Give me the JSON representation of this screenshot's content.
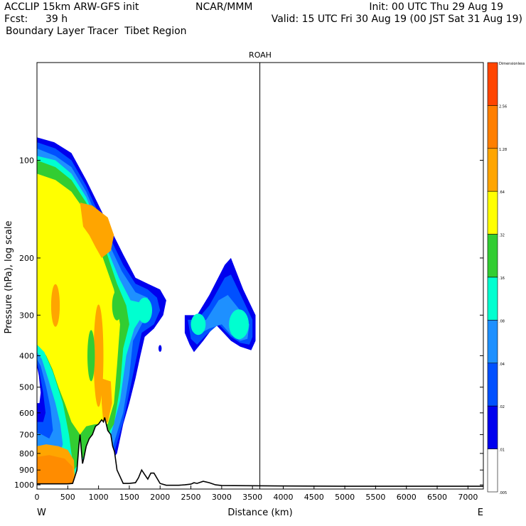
{
  "header": {
    "model": "ACCLIP 15km ARW-GFS init",
    "org": "NCAR/MMM",
    "init": "Init: 00 UTC Thu 29 Aug 19",
    "fcst_label": "Fcst:",
    "fcst_value": "39 h",
    "valid": "Valid: 15 UTC Fri 30 Aug 19 (00 JST Sat 31 Aug 19)",
    "field": "Boundary Layer Tracer  Tibet Region"
  },
  "chart_data": {
    "type": "area",
    "title": "ROAH",
    "xlabel": "Distance (km)",
    "ylabel": "Pressure (hPa), log scale",
    "x_end_labels": [
      "W",
      "E"
    ],
    "xlim": [
      0,
      7250
    ],
    "ylim_hpa": [
      1030,
      50
    ],
    "y_log_scale": true,
    "x_ticks": [
      0,
      500,
      1000,
      1500,
      2000,
      2500,
      3000,
      3500,
      4000,
      4500,
      5000,
      5500,
      6000,
      6500,
      7000
    ],
    "y_ticks": [
      100,
      200,
      300,
      400,
      500,
      600,
      700,
      800,
      900,
      1000
    ],
    "marker_line_km": 3620,
    "colorbar": {
      "labels": [
        "Dimensionless",
        "2.56",
        "1.28",
        ".64",
        ".32",
        ".16",
        ".08",
        ".04",
        ".02",
        ".01",
        ".005"
      ],
      "colors": [
        "#ff4500",
        "#ff7f00",
        "#ffa500",
        "#ffff00",
        "#32cd32",
        "#00ffd0",
        "#1e90ff",
        "#0050ff",
        "#0000ee",
        "#ffffff"
      ],
      "level_values": [
        5.12,
        2.56,
        1.28,
        0.64,
        0.32,
        0.16,
        0.08,
        0.04,
        0.02,
        0.01,
        0.005
      ]
    },
    "terrain": {
      "x_km": [
        0,
        200,
        400,
        500,
        580,
        650,
        680,
        700,
        720,
        740,
        760,
        800,
        850,
        900,
        950,
        1000,
        1050,
        1080,
        1100,
        1150,
        1200,
        1230,
        1260,
        1300,
        1400,
        1500,
        1600,
        1650,
        1700,
        1750,
        1800,
        1850,
        1900,
        2000,
        2100,
        2300,
        2400,
        2500,
        2550,
        2600,
        2700,
        2800,
        2900,
        3000,
        4000,
        5000,
        6000,
        7000,
        7250
      ],
      "p_hpa": [
        993,
        993,
        993,
        993,
        990,
        900,
        760,
        700,
        780,
        860,
        830,
        760,
        720,
        700,
        660,
        650,
        630,
        640,
        620,
        680,
        700,
        760,
        790,
        900,
        990,
        990,
        985,
        950,
        900,
        930,
        960,
        920,
        920,
        990,
        1003,
        1003,
        1000,
        995,
        985,
        990,
        975,
        985,
        1000,
        1005,
        1008,
        1010,
        1010,
        1010,
        1010
      ]
    },
    "tracer_regions": [
      {
        "level": ">0.01",
        "color": "#0000ee",
        "location": "0-2000 km, ~85-1000 hPa; 2400-3550 km, ~200-400 hPa"
      },
      {
        "level": ">0.02",
        "color": "#0050ff",
        "location": "0-1850 km, ~90-1000 hPa; 2450-3500 km, ~230-390 hPa"
      },
      {
        "level": ">0.04",
        "color": "#1e90ff",
        "location": "0-1750 km, ~95-1000 hPa; 3000-3450 km, ~270-380 hPa"
      },
      {
        "level": ">0.08",
        "color": "#00ffd0",
        "location": "0-1700 km, ~100-980 hPa; 2500-2800 km, ~300-350 hPa; 3100-3400 km, ~300-370 hPa"
      },
      {
        "level": ">0.16",
        "color": "#32cd32",
        "location": "0-1600 km, ~100-950 hPa"
      },
      {
        "level": ">0.32",
        "color": "#ffff00",
        "location": "0-1550 km, ~110-700 hPa"
      },
      {
        "level": ">0.64",
        "color": "#ffa500",
        "location": "0-600 km near surface 800-1000 hPa; 700-1250 km, ~130-200 hPa; 1050-1200 km, 450-650 hPa"
      }
    ]
  }
}
